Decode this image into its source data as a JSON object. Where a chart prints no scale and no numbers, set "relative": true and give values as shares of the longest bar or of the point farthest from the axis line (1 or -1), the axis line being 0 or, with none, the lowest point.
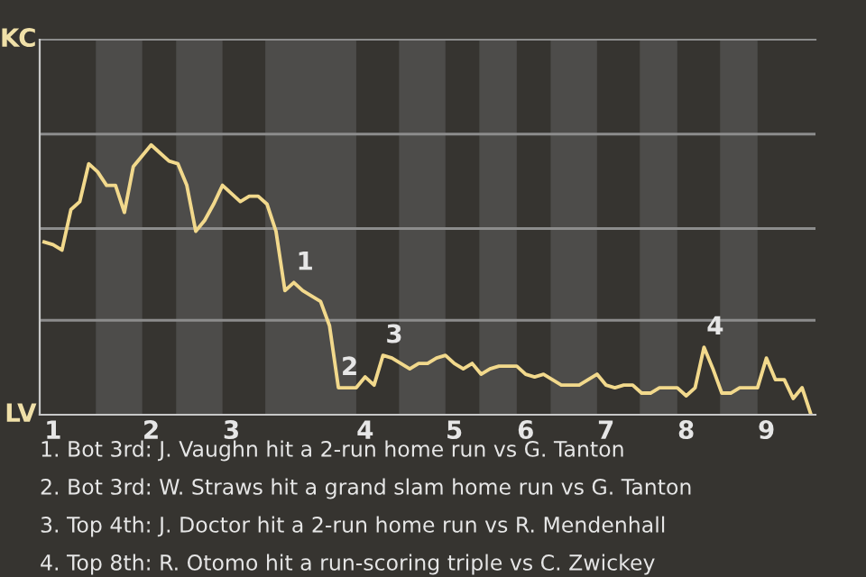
{
  "chart_data": {
    "type": "line",
    "relative": true,
    "categories": [
      null,
      "1",
      null,
      null,
      null,
      null,
      null,
      null,
      null,
      null,
      null,
      null,
      "2",
      null,
      null,
      null,
      null,
      null,
      null,
      null,
      null,
      "3",
      null,
      null,
      null,
      null,
      null,
      null,
      null,
      null,
      null,
      null,
      null,
      null,
      null,
      null,
      "4",
      null,
      null,
      null,
      null,
      null,
      null,
      null,
      null,
      null,
      "5",
      null,
      null,
      null,
      null,
      null,
      null,
      null,
      "6",
      null,
      null,
      null,
      null,
      null,
      null,
      null,
      null,
      "7",
      null,
      null,
      null,
      null,
      null,
      null,
      null,
      null,
      "8",
      null,
      null,
      null,
      null,
      null,
      null,
      null,
      null,
      "9",
      null,
      null,
      null,
      null,
      null
    ],
    "series": [
      {
        "color": "#f2d98c",
        "values": [
          0.64,
          0.63,
          0.61,
          0.76,
          0.79,
          0.93,
          0.9,
          0.85,
          0.85,
          0.75,
          0.92,
          0.96,
          1,
          0.97,
          0.94,
          0.93,
          0.85,
          0.68,
          0.72,
          0.78,
          0.85,
          0.82,
          0.79,
          0.81,
          0.81,
          0.78,
          0.68,
          0.46,
          0.49,
          0.46,
          0.44,
          0.42,
          0.33,
          0.1,
          0.1,
          0.1,
          0.14,
          0.11,
          0.22,
          0.21,
          0.19,
          0.17,
          0.19,
          0.19,
          0.21,
          0.22,
          0.19,
          0.17,
          0.19,
          0.15,
          0.17,
          0.18,
          0.18,
          0.18,
          0.15,
          0.14,
          0.15,
          0.13,
          0.11,
          0.11,
          0.11,
          0.13,
          0.15,
          0.11,
          0.1,
          0.11,
          0.11,
          0.08,
          0.08,
          0.1,
          0.1,
          0.1,
          0.07,
          0.1,
          0.25,
          0.17,
          0.08,
          0.08,
          0.1,
          0.1,
          0.1,
          0.21,
          0.13,
          0.13,
          0.06,
          0.1,
          0
        ]
      }
    ],
    "marker": "none",
    "line_style": "solid",
    "ref_lines": [
      {
        "axis": "y",
        "value": 0.35,
        "color": "#8c8c8c"
      },
      {
        "axis": "y",
        "value": 0.69,
        "color": "#8c8c8c"
      },
      {
        "axis": "y",
        "value": 1.04,
        "color": "#8c8c8c"
      }
    ],
    "annotations": [
      "KC",
      "LV",
      {
        "text": "1",
        "y": 0.49
      },
      {
        "text": "2",
        "y": 0.1
      },
      {
        "text": "3",
        "y": 0.22
      },
      {
        "text": "4",
        "y": 0.25
      },
      "1. Bot 3rd: J. Vaughn hit a 2-run home run vs G. Tanton",
      "2. Bot 3rd: W. Straws hit a grand slam home run vs G. Tanton",
      "3. Top 4th: J. Doctor hit a 2-run home run vs R. Mendenhall",
      "4. Top 8th: R. Otomo hit a run-scoring triple vs C. Zwickey"
    ]
  }
}
